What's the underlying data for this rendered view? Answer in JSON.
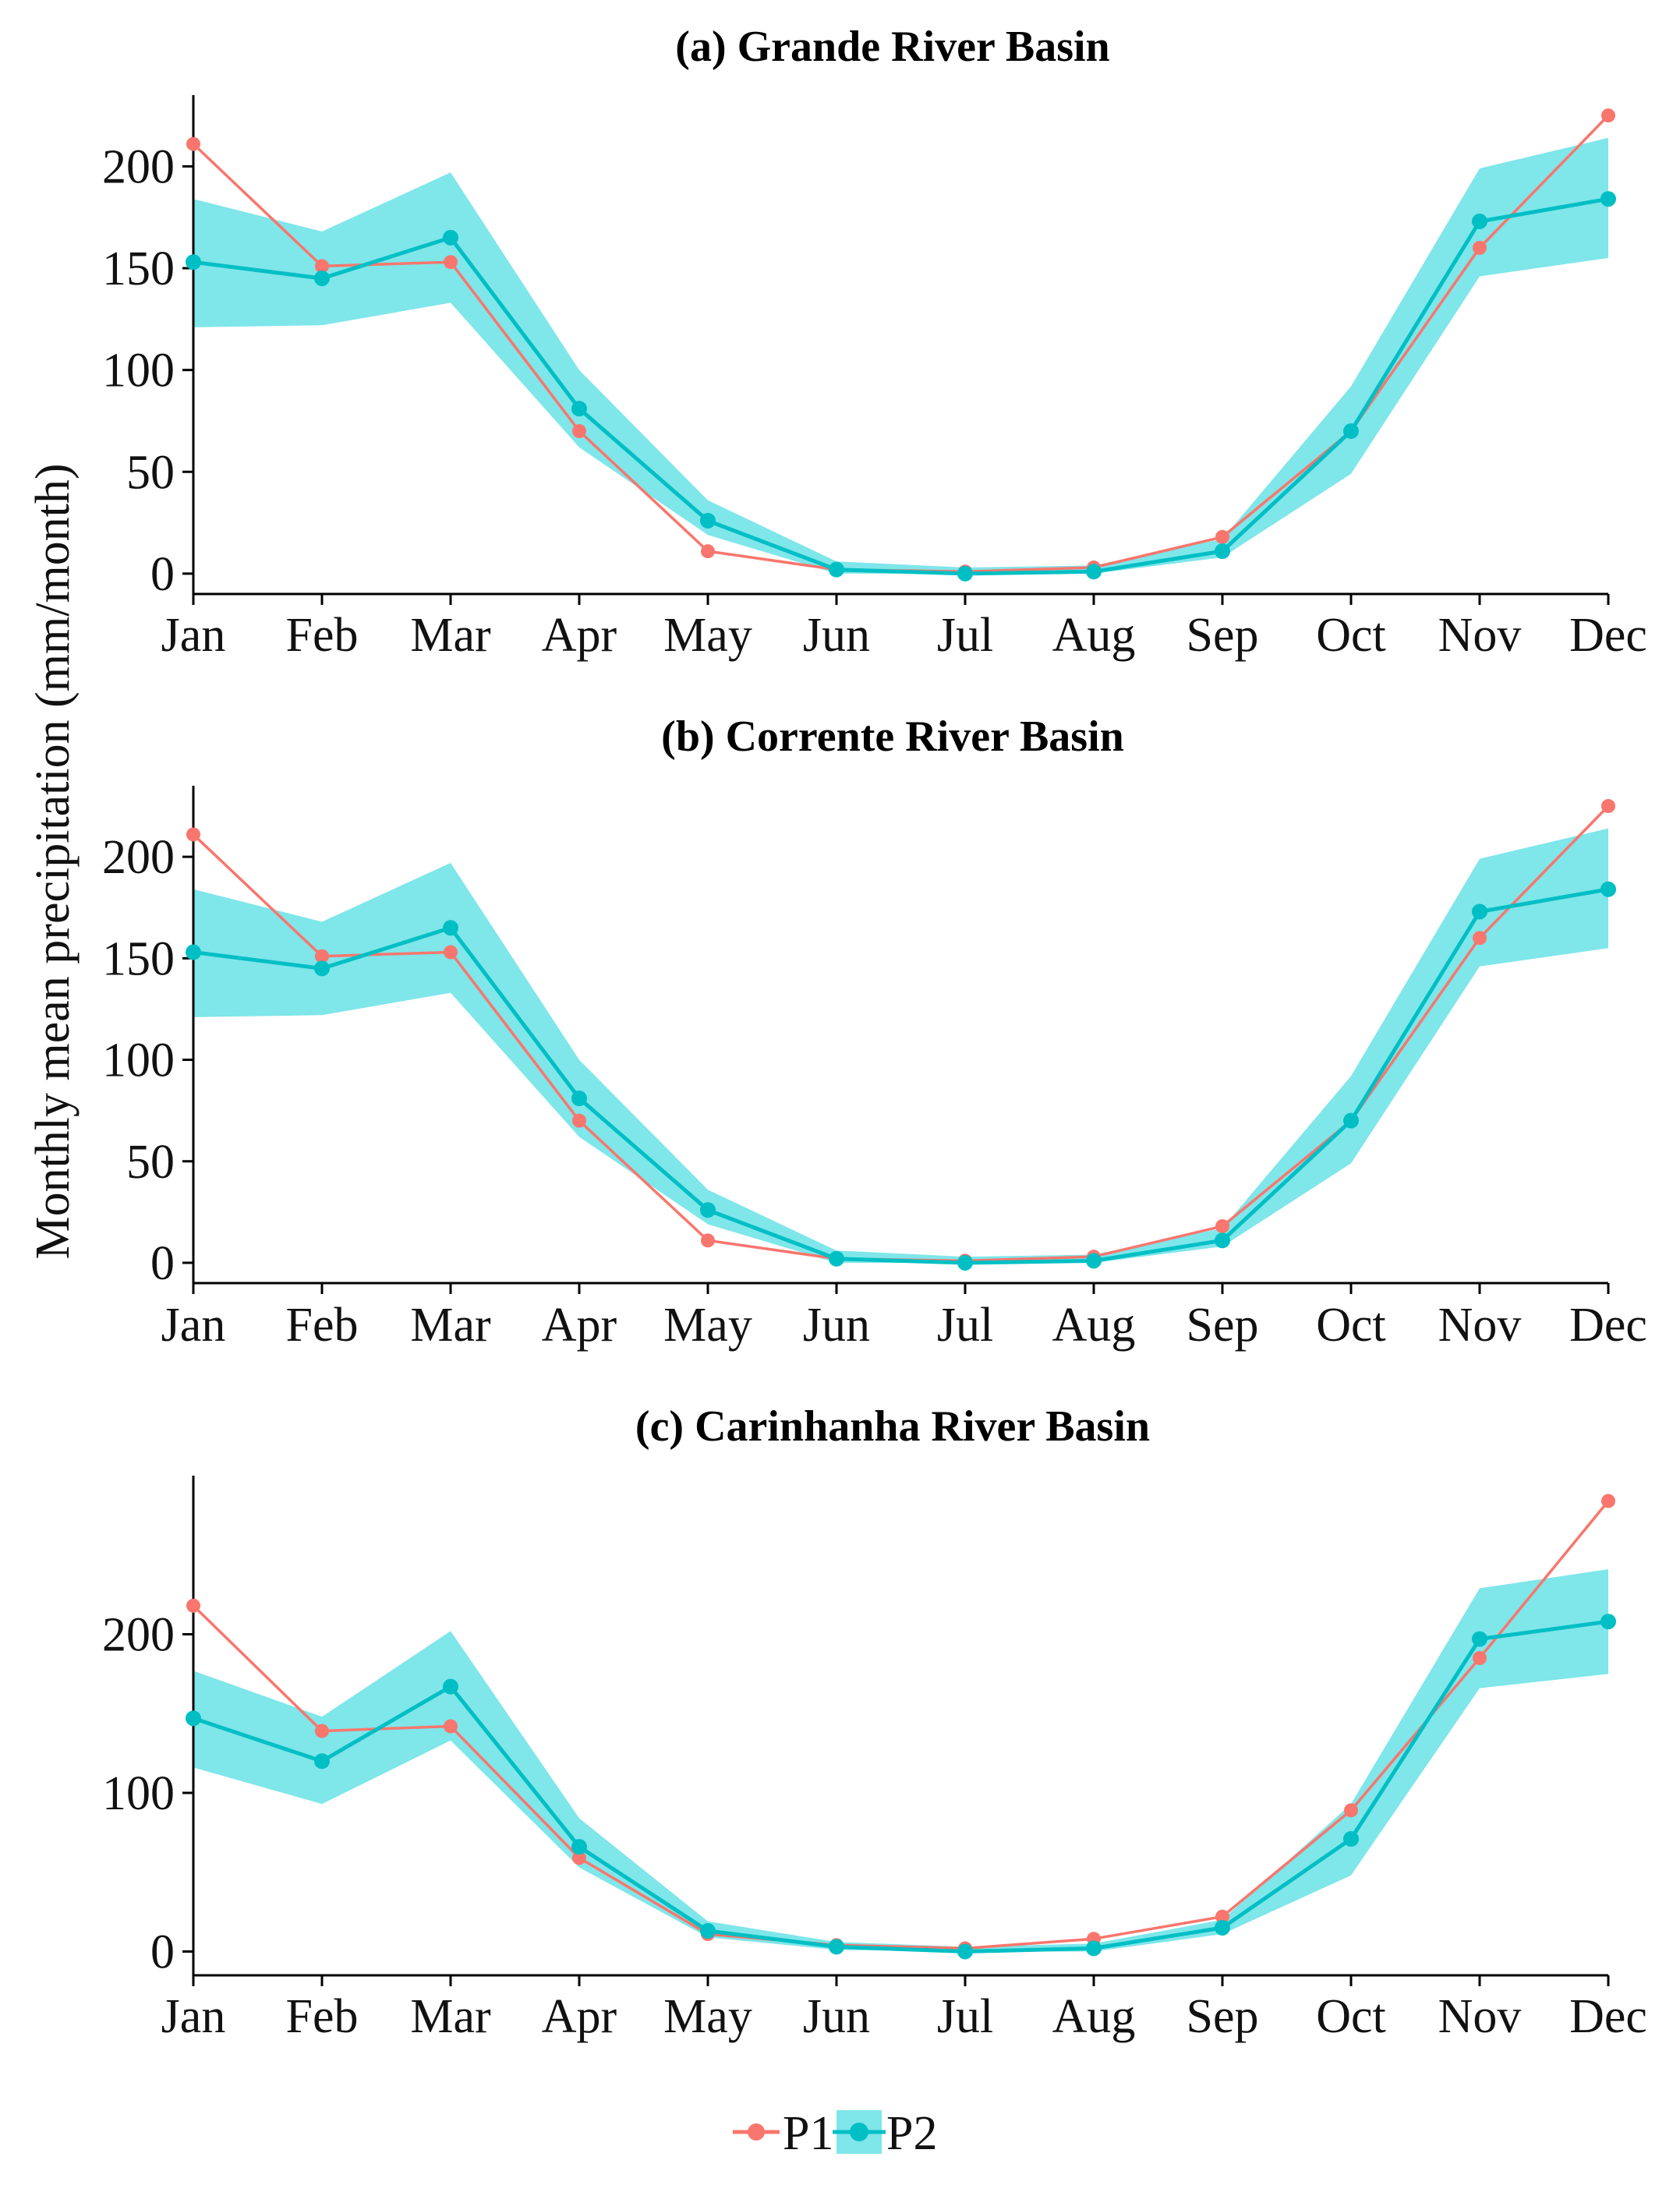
{
  "chart_data": [
    {
      "type": "line",
      "title": "(a) Grande River Basin",
      "categories": [
        "Jan",
        "Feb",
        "Mar",
        "Apr",
        "May",
        "Jun",
        "Jul",
        "Aug",
        "Sep",
        "Oct",
        "Nov",
        "Dec"
      ],
      "ylim": [
        -10,
        235
      ],
      "yticks": [
        0,
        50,
        100,
        150,
        200
      ],
      "series": [
        {
          "name": "P1",
          "color": "#F8766D",
          "values": [
            211,
            151,
            153,
            70,
            11,
            2,
            1,
            3,
            18,
            70,
            160,
            225
          ]
        },
        {
          "name": "P2",
          "color": "#00BFC4",
          "values": [
            153,
            145,
            165,
            81,
            26,
            2,
            0,
            1,
            11,
            70,
            173,
            184
          ]
        }
      ],
      "band": {
        "series": "P2",
        "color": "#7FE6EA",
        "lower": [
          121,
          122,
          133,
          62,
          19,
          0,
          0,
          0,
          8,
          49,
          146,
          155
        ],
        "upper": [
          184,
          168,
          197,
          100,
          36,
          6,
          3,
          4,
          17,
          92,
          199,
          214
        ]
      }
    },
    {
      "type": "line",
      "title": "(b) Corrente River Basin",
      "categories": [
        "Jan",
        "Feb",
        "Mar",
        "Apr",
        "May",
        "Jun",
        "Jul",
        "Aug",
        "Sep",
        "Oct",
        "Nov",
        "Dec"
      ],
      "ylim": [
        -10,
        235
      ],
      "yticks": [
        0,
        50,
        100,
        150,
        200
      ],
      "series": [
        {
          "name": "P1",
          "color": "#F8766D",
          "values": [
            211,
            151,
            153,
            70,
            11,
            2,
            1,
            3,
            18,
            70,
            160,
            225
          ]
        },
        {
          "name": "P2",
          "color": "#00BFC4",
          "values": [
            153,
            145,
            165,
            81,
            26,
            2,
            0,
            1,
            11,
            70,
            173,
            184
          ]
        }
      ],
      "band": {
        "series": "P2",
        "color": "#7FE6EA",
        "lower": [
          121,
          122,
          133,
          62,
          19,
          0,
          0,
          0,
          8,
          49,
          146,
          155
        ],
        "upper": [
          184,
          168,
          197,
          100,
          36,
          6,
          3,
          4,
          17,
          92,
          199,
          214
        ]
      }
    },
    {
      "type": "line",
      "title": "(c) Carinhanha River Basin",
      "categories": [
        "Jan",
        "Feb",
        "Mar",
        "Apr",
        "May",
        "Jun",
        "Jul",
        "Aug",
        "Sep",
        "Oct",
        "Nov",
        "Dec"
      ],
      "ylim": [
        -15,
        300
      ],
      "yticks": [
        0,
        100,
        200
      ],
      "series": [
        {
          "name": "P1",
          "color": "#F8766D",
          "values": [
            218,
            139,
            142,
            59,
            11,
            4,
            2,
            8,
            22,
            89,
            185,
            284
          ]
        },
        {
          "name": "P2",
          "color": "#00BFC4",
          "values": [
            147,
            120,
            167,
            66,
            13,
            3,
            0,
            2,
            15,
            71,
            197,
            208
          ]
        }
      ],
      "band": {
        "series": "P2",
        "color": "#7FE6EA",
        "lower": [
          116,
          93,
          133,
          53,
          9,
          1,
          0,
          0,
          11,
          48,
          166,
          175
        ],
        "upper": [
          177,
          148,
          202,
          84,
          19,
          6,
          3,
          5,
          20,
          93,
          229,
          241
        ]
      }
    }
  ],
  "y_axis_label": "Monthly mean precipitation (mm/month)",
  "legend": [
    {
      "label": "P1",
      "color": "#F8766D"
    },
    {
      "label": "P2",
      "color": "#00BFC4",
      "band_color": "#7FE6EA"
    }
  ]
}
